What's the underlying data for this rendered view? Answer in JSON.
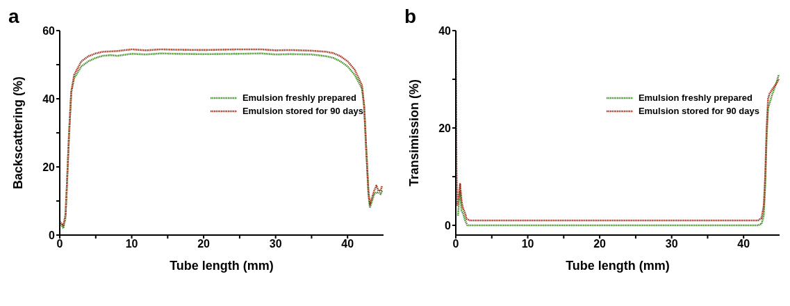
{
  "chart_data": [
    {
      "type": "line",
      "title": "a",
      "xlabel": "Tube length (mm)",
      "ylabel": "Backscattering (%)",
      "xlim": [
        0,
        45
      ],
      "ylim": [
        0,
        60
      ],
      "xticks": [
        0,
        {
          "value": 5,
          "label": null
        },
        10,
        {
          "value": 15,
          "label": null
        },
        20,
        {
          "value": 25,
          "label": null
        },
        30,
        {
          "value": 35,
          "label": null
        },
        40
      ],
      "yticks": [
        0,
        {
          "value": 10,
          "label": null
        },
        20,
        {
          "value": 30,
          "label": null
        },
        40,
        {
          "value": 50,
          "label": null
        },
        60
      ],
      "legend": "top right",
      "grid": false,
      "marker": "none",
      "line_style": "dotted",
      "series": [
        {
          "name": "Emulsion freshly prepared",
          "color": "#3a8a1e",
          "x": [
            0,
            0.2,
            0.5,
            0.8,
            1.0,
            1.3,
            1.6,
            2,
            3,
            4,
            5,
            6,
            7,
            8,
            10,
            12,
            14,
            16,
            20,
            25,
            28,
            30,
            32,
            35,
            37,
            38,
            39,
            40,
            41,
            42,
            42.3,
            42.6,
            42.9,
            43.1,
            43.4,
            43.7,
            44,
            44.3,
            44.6,
            44.8
          ],
          "values": [
            3.5,
            3,
            2,
            5,
            15,
            30,
            42,
            46,
            49.5,
            51,
            52,
            52.6,
            52.8,
            52.6,
            53.2,
            53,
            53.3,
            53.2,
            53.1,
            53.2,
            53.3,
            53,
            53.1,
            53,
            52.5,
            52,
            51,
            49.5,
            47,
            43,
            38,
            25,
            12,
            8,
            10,
            12,
            12.5,
            12.5,
            12,
            13
          ]
        },
        {
          "name": "Emulsion stored for 90 days",
          "color": "#9b2a14",
          "x": [
            0,
            0.2,
            0.5,
            0.8,
            1.0,
            1.3,
            1.6,
            2,
            3,
            4,
            5,
            6,
            8,
            10,
            12,
            14,
            16,
            20,
            25,
            28,
            30,
            32,
            35,
            37,
            38,
            39,
            40,
            41,
            42,
            42.3,
            42.6,
            42.9,
            43.1,
            43.4,
            43.7,
            44,
            44.3,
            44.6,
            44.8
          ],
          "values": [
            4,
            3.5,
            2.8,
            6,
            15,
            30,
            42,
            47,
            51,
            52.5,
            53.3,
            53.8,
            54,
            54.5,
            54.2,
            54.5,
            54.4,
            54.3,
            54.5,
            54.5,
            54.2,
            54.3,
            54.1,
            53.8,
            53.4,
            52.5,
            51,
            48.5,
            44,
            38,
            25,
            13,
            9,
            11,
            13,
            14.5,
            13,
            13,
            14.5
          ]
        }
      ]
    },
    {
      "type": "line",
      "title": "b",
      "xlabel": "Tube length (mm)",
      "ylabel": "Transimission (%)",
      "xlim": [
        0,
        45
      ],
      "ylim": [
        -2,
        40
      ],
      "xticks": [
        0,
        {
          "value": 5,
          "label": null
        },
        10,
        {
          "value": 15,
          "label": null
        },
        20,
        {
          "value": 25,
          "label": null
        },
        30,
        {
          "value": 35,
          "label": null
        },
        40
      ],
      "yticks": [
        0,
        {
          "value": 10,
          "label": null
        },
        20,
        {
          "value": 30,
          "label": null
        },
        40
      ],
      "legend": "top right",
      "grid": false,
      "marker": "none",
      "line_style": "dotted",
      "series": [
        {
          "name": "Emulsion freshly prepared",
          "color": "#3a8a1e",
          "x": [
            0.3,
            0.5,
            0.6,
            0.8,
            1.0,
            1.3,
            1.6,
            2,
            42,
            42.5,
            42.8,
            43,
            43.2,
            43.4,
            43.6,
            44,
            44.5,
            44.9
          ],
          "values": [
            2,
            6,
            7,
            3,
            2.5,
            1,
            0,
            0,
            0,
            0.3,
            2,
            8,
            18,
            24,
            25,
            27,
            29,
            31
          ]
        },
        {
          "name": "Emulsion stored for 90 days",
          "color": "#9b2a14",
          "x": [
            0,
            0.1,
            0.2,
            0.4,
            0.6,
            0.8,
            1.0,
            1.3,
            1.5,
            2,
            42,
            42.5,
            42.8,
            43,
            43.2,
            43.4,
            43.6,
            44,
            44.5,
            44.9
          ],
          "values": [
            40,
            12,
            4,
            6,
            8.5,
            5,
            3.5,
            2.5,
            1.3,
            1,
            1,
            1.5,
            4,
            10,
            20,
            26,
            27,
            28,
            29,
            30
          ]
        }
      ]
    }
  ]
}
